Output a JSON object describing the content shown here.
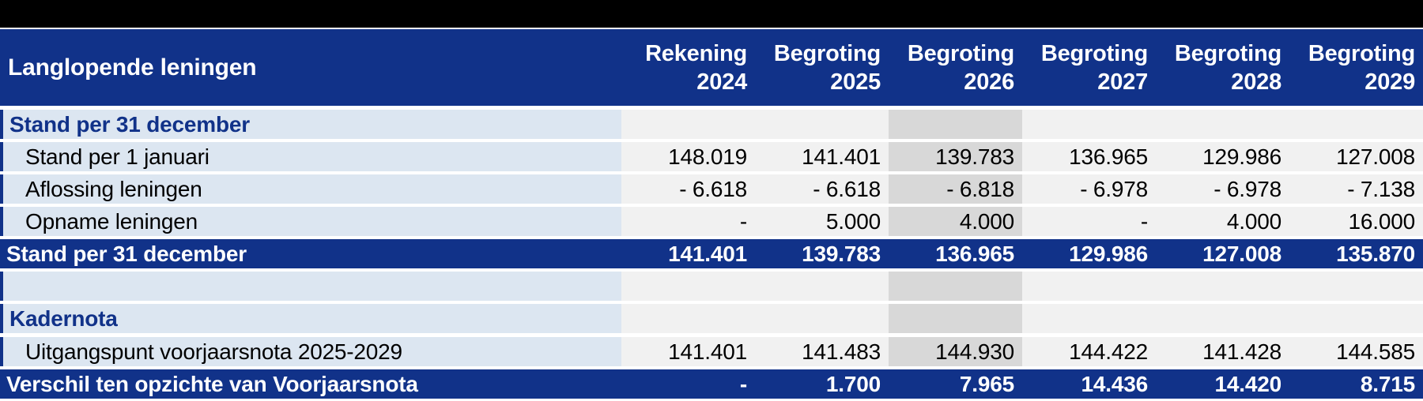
{
  "table": {
    "title": "Langlopende leningen",
    "columns": [
      {
        "line1": "Rekening",
        "line2": "2024"
      },
      {
        "line1": "Begroting",
        "line2": "2025"
      },
      {
        "line1": "Begroting",
        "line2": "2026"
      },
      {
        "line1": "Begroting",
        "line2": "2027"
      },
      {
        "line1": "Begroting",
        "line2": "2028"
      },
      {
        "line1": "Begroting",
        "line2": "2029"
      }
    ],
    "highlight_column_index": 2,
    "rows": [
      {
        "type": "section",
        "label": "Stand per 31 december",
        "values": [
          "",
          "",
          "",
          "",
          "",
          ""
        ]
      },
      {
        "type": "data",
        "label": "Stand per 1 januari",
        "values": [
          "148.019",
          "141.401",
          "139.783",
          "136.965",
          "129.986",
          "127.008"
        ]
      },
      {
        "type": "data",
        "label": "Aflossing leningen",
        "values": [
          "- 6.618",
          "- 6.618",
          "- 6.818",
          "- 6.978",
          "- 6.978",
          "- 7.138"
        ]
      },
      {
        "type": "data",
        "label": "Opname leningen",
        "values": [
          "-",
          "5.000",
          "4.000",
          "-",
          "4.000",
          "16.000"
        ]
      },
      {
        "type": "total",
        "label": "Stand per 31 december",
        "values": [
          "141.401",
          "139.783",
          "136.965",
          "129.986",
          "127.008",
          "135.870"
        ]
      },
      {
        "type": "empty",
        "label": "",
        "values": [
          "",
          "",
          "",
          "",
          "",
          ""
        ]
      },
      {
        "type": "section",
        "label": "Kadernota",
        "values": [
          "",
          "",
          "",
          "",
          "",
          ""
        ]
      },
      {
        "type": "data",
        "label": "Uitgangspunt voorjaarsnota 2025-2029",
        "values": [
          "141.401",
          "141.483",
          "144.930",
          "144.422",
          "141.428",
          "144.585"
        ]
      },
      {
        "type": "total",
        "label": "Verschil ten opzichte van Voorjaarsnota",
        "values": [
          "-",
          "1.700",
          "7.965",
          "14.436",
          "14.420",
          "8.715"
        ]
      }
    ],
    "colors": {
      "navy": "#113289",
      "label_bg": "#dce6f1",
      "cell_bg": "#f1f1f1",
      "highlight_bg": "#d8d8d8",
      "top_bar": "#000000",
      "text": "#000000",
      "header_text": "#ffffff"
    }
  }
}
